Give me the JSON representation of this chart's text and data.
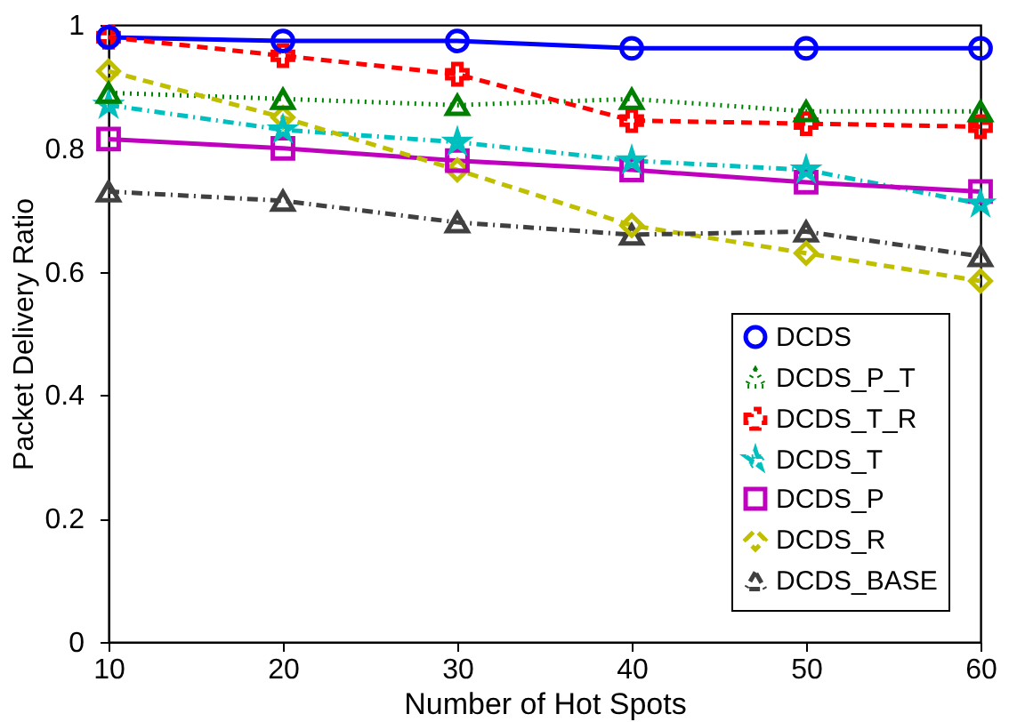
{
  "chart_data": {
    "type": "line",
    "xlabel": "Number of Hot Spots",
    "ylabel": "Packet Delivery Ratio",
    "x": [
      10,
      20,
      30,
      40,
      50,
      60
    ],
    "xlim": [
      10,
      60
    ],
    "xticks": [
      10,
      20,
      30,
      40,
      50,
      60
    ],
    "ylim": [
      0,
      1
    ],
    "yticks": [
      0,
      0.2,
      0.4,
      0.6,
      0.8,
      1
    ],
    "grid": false,
    "legend": "bottom right",
    "series": [
      {
        "name": "DCDS",
        "color": "#0000ff",
        "marker": "circle",
        "line_style": "solid",
        "values": [
          0.98,
          0.974,
          0.974,
          0.962,
          0.962,
          0.962
        ]
      },
      {
        "name": "DCDS_P_T",
        "color": "#008000",
        "marker": "triangle",
        "line_style": "dotted",
        "values": [
          0.89,
          0.88,
          0.87,
          0.88,
          0.86,
          0.86
        ]
      },
      {
        "name": "DCDS_T_R",
        "color": "#ff0000",
        "marker": "cross",
        "line_style": "dashed",
        "values": [
          0.98,
          0.95,
          0.92,
          0.845,
          0.84,
          0.835
        ]
      },
      {
        "name": "DCDS_T",
        "color": "#00bfbf",
        "marker": "star",
        "line_style": "dashdot",
        "values": [
          0.87,
          0.83,
          0.81,
          0.78,
          0.765,
          0.71
        ]
      },
      {
        "name": "DCDS_P",
        "color": "#bf00bf",
        "marker": "square",
        "line_style": "solid",
        "values": [
          0.815,
          0.8,
          0.78,
          0.765,
          0.745,
          0.73
        ]
      },
      {
        "name": "DCDS_R",
        "color": "#bfbf00",
        "marker": "diamond",
        "line_style": "dashed",
        "values": [
          0.925,
          0.85,
          0.765,
          0.675,
          0.63,
          0.585
        ]
      },
      {
        "name": "DCDS_BASE",
        "color": "#404040",
        "marker": "triangle",
        "line_style": "dashdot",
        "values": [
          0.73,
          0.715,
          0.68,
          0.66,
          0.665,
          0.625
        ]
      }
    ]
  }
}
